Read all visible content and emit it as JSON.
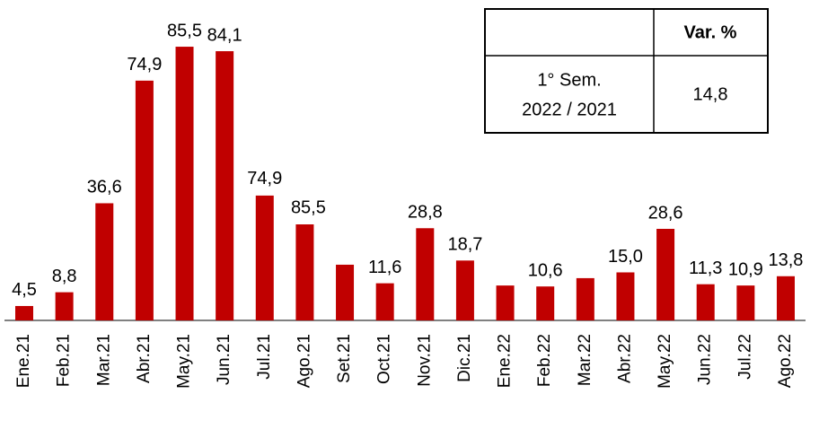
{
  "chart_data": {
    "type": "bar",
    "categories": [
      "Ene.21",
      "Feb.21",
      "Mar.21",
      "Abr.21",
      "May.21",
      "Jun.21",
      "Jul.21",
      "Ago.21",
      "Set.21",
      "Oct.21",
      "Nov.21",
      "Dic.21",
      "Ene.22",
      "Feb.22",
      "Mar.22",
      "Abr.22",
      "May.22",
      "Jun.22",
      "Jul.22",
      "Ago.22"
    ],
    "values": [
      4.5,
      8.8,
      36.6,
      74.9,
      85.5,
      84.1,
      39.0,
      30.0,
      17.4,
      11.6,
      28.8,
      18.7,
      10.9,
      10.6,
      13.2,
      15.0,
      28.6,
      11.3,
      10.9,
      13.8
    ],
    "value_labels": [
      "4,5",
      "8,8",
      "36,6",
      "74,9",
      "85,5",
      "84,1",
      null,
      null,
      null,
      "11,6",
      "28,8",
      "18,7",
      null,
      "10,6",
      null,
      "15,0",
      "28,6",
      "11,3",
      "10,9",
      "13,8"
    ],
    "annotations": [
      {
        "category": "Jul.21",
        "text": "74,9"
      },
      {
        "category": "Ago.21",
        "text": "85,5"
      }
    ],
    "color": "#c00000",
    "ylim": [
      0,
      90
    ]
  },
  "table": {
    "header": [
      "",
      "Var. %"
    ],
    "rows": [
      [
        [
          "1° Sem.",
          "2022 / 2021"
        ],
        "14,8"
      ]
    ]
  }
}
